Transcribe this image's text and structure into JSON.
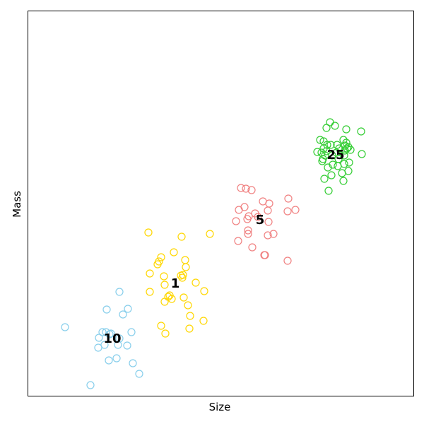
{
  "chart_data": {
    "type": "scatter",
    "title": "",
    "xlabel": "Size",
    "ylabel": "Mass",
    "xlim": [
      0,
      600
    ],
    "ylim": [
      0,
      600
    ],
    "grid": false,
    "ticks": "none",
    "series": [
      {
        "label": "10",
        "label_at": [
          159,
          479
        ],
        "color": "#87CEEB",
        "x": [
          92,
          128,
          139,
          140,
          145,
          148,
          150,
          151,
          154,
          155,
          157,
          165,
          167,
          169,
          169,
          174,
          180,
          181,
          186,
          188,
          197
        ],
        "y": [
          463,
          545,
          492,
          478,
          470,
          488,
          470,
          438,
          510,
          473,
          472,
          507,
          488,
          413,
          479,
          445,
          489,
          437,
          470,
          514,
          529
        ]
      },
      {
        "label": "1",
        "label_at": [
          248,
          401
        ],
        "color": "#FFD700",
        "x": [
          210,
          212,
          212,
          223,
          225,
          228,
          228,
          232,
          233,
          233,
          234,
          238,
          240,
          243,
          246,
          256,
          257,
          258,
          259,
          260,
          262,
          263,
          266,
          268,
          269,
          277,
          288,
          289,
          297
        ],
        "y": [
          329,
          387,
          413,
          374,
          370,
          364,
          461,
          391,
          403,
          427,
          472,
          420,
          418,
          423,
          357,
          390,
          335,
          393,
          389,
          421,
          368,
          378,
          432,
          465,
          447,
          400,
          454,
          412,
          331
        ]
      },
      {
        "label": "5",
        "label_at": [
          368,
          311
        ],
        "color": "#F08080",
        "x": [
          334,
          337,
          338,
          341,
          346,
          348,
          350,
          351,
          351,
          352,
          356,
          357,
          361,
          365,
          372,
          374,
          375,
          379,
          379,
          380,
          381,
          387,
          407,
          407,
          408,
          418
        ],
        "y": [
          313,
          341,
          297,
          266,
          293,
          267,
          310,
          326,
          331,
          306,
          269,
          350,
          302,
          307,
          285,
          361,
          361,
          298,
          333,
          314,
          288,
          331,
          369,
          299,
          281,
          297
        ]
      },
      {
        "label": "25",
        "label_at": [
          475,
          219
        ],
        "color": "#32CD32",
        "x": [
          449,
          453,
          455,
          456,
          457,
          458,
          458,
          459,
          460,
          462,
          462,
          463,
          464,
          465,
          467,
          468,
          469,
          470,
          471,
          474,
          476,
          477,
          478,
          479,
          480,
          484,
          486,
          486,
          487,
          487,
          488,
          488,
          490,
          490,
          491,
          493,
          493,
          494,
          496,
          511,
          512
        ],
        "y": [
          215,
          198,
          216,
          228,
          225,
          200,
          210,
          253,
          220,
          181,
          214,
          205,
          237,
          270,
          173,
          205,
          248,
          220,
          233,
          178,
          216,
          205,
          235,
          225,
          210,
          245,
          198,
          256,
          220,
          232,
          206,
          213,
          183,
          202,
          210,
          242,
          208,
          230,
          212,
          186,
          218
        ]
      }
    ]
  }
}
